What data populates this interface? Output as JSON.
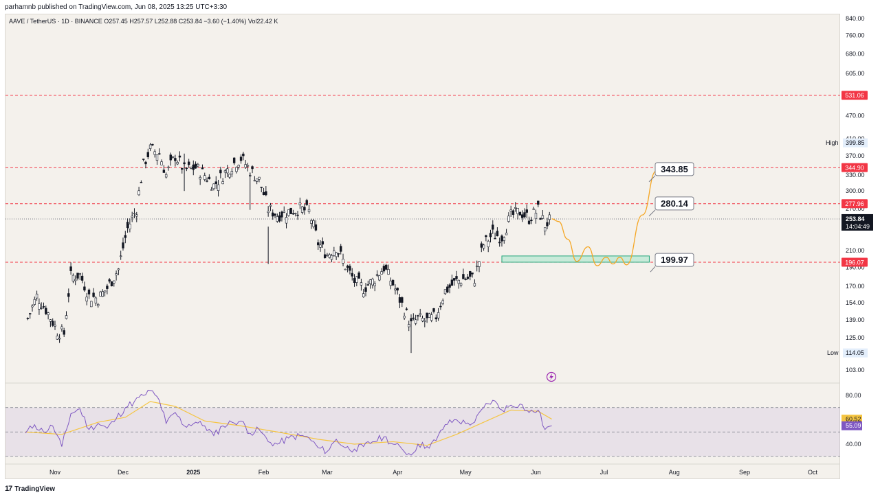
{
  "publish_line": "parhamnb published on TradingView.com, Jun 08, 2025 13:25 UTC+3:30",
  "symbol_line": "AAVE / TetherUS · 1D · BINANCE  O257.45  H257.57  L252.88  C253.84  −3.60 (−1.40%)  Vol22.42 K",
  "footer": {
    "logo": "17",
    "brand": "TradingView"
  },
  "colors": {
    "background": "#f4f1ec",
    "candle": "#131722",
    "support_line": "#f23645",
    "projection": "#f5a623",
    "rsi_line": "#7e57c2",
    "rsi_ma": "#f5c542",
    "zone_fill": "#c8ead9",
    "zone_border": "#21a67a"
  },
  "chart_data": [
    {
      "type": "candlestick",
      "title": "AAVE / TetherUS",
      "y_scale": "log",
      "ylim": [
        95,
        840
      ],
      "y_ticks": [
        840.0,
        760.0,
        680.0,
        605.0,
        470.0,
        410.0,
        370.0,
        330.0,
        300.0,
        270.0,
        210.0,
        190.0,
        170.0,
        154.0,
        139.0,
        125.0,
        103.0
      ],
      "x_labels": [
        "Nov",
        "Dec",
        "2025",
        "Feb",
        "Mar",
        "Apr",
        "May",
        "Jun",
        "Jul",
        "Aug",
        "Sep",
        "Oct"
      ],
      "close_series": [
        {
          "date": "2024-10-20",
          "close": 140
        },
        {
          "date": "2024-10-24",
          "close": 160
        },
        {
          "date": "2024-10-28",
          "close": 148
        },
        {
          "date": "2024-11-02",
          "close": 130
        },
        {
          "date": "2024-11-05",
          "close": 128
        },
        {
          "date": "2024-11-08",
          "close": 180
        },
        {
          "date": "2024-11-12",
          "close": 182
        },
        {
          "date": "2024-11-16",
          "close": 160
        },
        {
          "date": "2024-11-20",
          "close": 158
        },
        {
          "date": "2024-11-24",
          "close": 168
        },
        {
          "date": "2024-11-29",
          "close": 188
        },
        {
          "date": "2024-12-03",
          "close": 240
        },
        {
          "date": "2024-12-07",
          "close": 270
        },
        {
          "date": "2024-12-10",
          "close": 350
        },
        {
          "date": "2024-12-13",
          "close": 385
        },
        {
          "date": "2024-12-17",
          "close": 375
        },
        {
          "date": "2024-12-20",
          "close": 330
        },
        {
          "date": "2024-12-24",
          "close": 370
        },
        {
          "date": "2024-12-28",
          "close": 340
        },
        {
          "date": "2025-01-02",
          "close": 345
        },
        {
          "date": "2025-01-06",
          "close": 330
        },
        {
          "date": "2025-01-10",
          "close": 310
        },
        {
          "date": "2025-01-14",
          "close": 330
        },
        {
          "date": "2025-01-18",
          "close": 350
        },
        {
          "date": "2025-01-22",
          "close": 365
        },
        {
          "date": "2025-01-26",
          "close": 340
        },
        {
          "date": "2025-01-30",
          "close": 320
        },
        {
          "date": "2025-02-03",
          "close": 270
        },
        {
          "date": "2025-02-07",
          "close": 260
        },
        {
          "date": "2025-02-12",
          "close": 265
        },
        {
          "date": "2025-02-17",
          "close": 270
        },
        {
          "date": "2025-02-21",
          "close": 265
        },
        {
          "date": "2025-02-25",
          "close": 220
        },
        {
          "date": "2025-03-01",
          "close": 205
        },
        {
          "date": "2025-03-05",
          "close": 215
        },
        {
          "date": "2025-03-09",
          "close": 192
        },
        {
          "date": "2025-03-13",
          "close": 175
        },
        {
          "date": "2025-03-17",
          "close": 168
        },
        {
          "date": "2025-03-21",
          "close": 175
        },
        {
          "date": "2025-03-26",
          "close": 190
        },
        {
          "date": "2025-03-30",
          "close": 172
        },
        {
          "date": "2025-04-03",
          "close": 152
        },
        {
          "date": "2025-04-07",
          "close": 135
        },
        {
          "date": "2025-04-10",
          "close": 140
        },
        {
          "date": "2025-04-14",
          "close": 138
        },
        {
          "date": "2025-04-18",
          "close": 142
        },
        {
          "date": "2025-04-22",
          "close": 165
        },
        {
          "date": "2025-04-27",
          "close": 175
        },
        {
          "date": "2025-05-01",
          "close": 178
        },
        {
          "date": "2025-05-05",
          "close": 178
        },
        {
          "date": "2025-05-09",
          "close": 218
        },
        {
          "date": "2025-05-13",
          "close": 232
        },
        {
          "date": "2025-05-17",
          "close": 228
        },
        {
          "date": "2025-05-21",
          "close": 258
        },
        {
          "date": "2025-05-25",
          "close": 265
        },
        {
          "date": "2025-05-29",
          "close": 255
        },
        {
          "date": "2025-06-02",
          "close": 268
        },
        {
          "date": "2025-06-05",
          "close": 245
        },
        {
          "date": "2025-06-08",
          "close": 253.84
        }
      ],
      "horizontal_levels": [
        {
          "value": 531.06,
          "label": "531.06",
          "color": "#f23645"
        },
        {
          "value": 344.9,
          "label": "344.90",
          "color": "#f23645"
        },
        {
          "value": 277.96,
          "label": "277.96",
          "color": "#f23645"
        },
        {
          "value": 196.07,
          "label": "196.07",
          "color": "#f23645"
        }
      ],
      "last_price": {
        "value": 253.84,
        "label": "253.84",
        "countdown": "14:04:49"
      },
      "high_marker": {
        "label": "High",
        "value": 399.85,
        "text": "399.85"
      },
      "low_marker": {
        "label": "Low",
        "value": 114.05,
        "text": "114.05"
      },
      "annotations": [
        {
          "text": "343.85",
          "value": 343.85
        },
        {
          "text": "280.14",
          "value": 280.14
        },
        {
          "text": "199.97",
          "value": 199.97
        }
      ],
      "support_zone": {
        "from": 196.07,
        "to": 203.5,
        "start_date": "2025-05-17",
        "end_date": "2025-07-21"
      },
      "projection_path": [
        {
          "date": "2025-06-08",
          "price": 254
        },
        {
          "date": "2025-06-11",
          "price": 250
        },
        {
          "date": "2025-06-15",
          "price": 225
        },
        {
          "date": "2025-06-19",
          "price": 197
        },
        {
          "date": "2025-06-24",
          "price": 215
        },
        {
          "date": "2025-06-28",
          "price": 192
        },
        {
          "date": "2025-07-02",
          "price": 202
        },
        {
          "date": "2025-07-05",
          "price": 194
        },
        {
          "date": "2025-07-08",
          "price": 202
        },
        {
          "date": "2025-07-11",
          "price": 193
        },
        {
          "date": "2025-07-18",
          "price": 260
        },
        {
          "date": "2025-07-24",
          "price": 338
        }
      ]
    },
    {
      "type": "line",
      "title": "RSI",
      "ylim": [
        25,
        90
      ],
      "y_ticks": [
        80.0,
        40.0
      ],
      "band": [
        30,
        70
      ],
      "midline": 50,
      "last_values": {
        "rsi_ma": 60.52,
        "rsi": 55.09
      },
      "series": [
        {
          "values": [
            {
              "date": "2024-10-19",
              "value": 49
            },
            {
              "date": "2024-10-23",
              "value": 56
            },
            {
              "date": "2024-10-27",
              "value": 50
            },
            {
              "date": "2024-10-31",
              "value": 55
            },
            {
              "date": "2024-11-04",
              "value": 38
            },
            {
              "date": "2024-11-08",
              "value": 65
            },
            {
              "date": "2024-11-12",
              "value": 69
            },
            {
              "date": "2024-11-16",
              "value": 52
            },
            {
              "date": "2024-11-20",
              "value": 57
            },
            {
              "date": "2024-11-24",
              "value": 53
            },
            {
              "date": "2024-11-28",
              "value": 61
            },
            {
              "date": "2024-12-02",
              "value": 70
            },
            {
              "date": "2024-12-06",
              "value": 75
            },
            {
              "date": "2024-12-10",
              "value": 80
            },
            {
              "date": "2024-12-13",
              "value": 84
            },
            {
              "date": "2024-12-17",
              "value": 76
            },
            {
              "date": "2024-12-20",
              "value": 57
            },
            {
              "date": "2024-12-24",
              "value": 66
            },
            {
              "date": "2024-12-28",
              "value": 55
            },
            {
              "date": "2025-01-02",
              "value": 58
            },
            {
              "date": "2025-01-06",
              "value": 55
            },
            {
              "date": "2025-01-10",
              "value": 47
            },
            {
              "date": "2025-01-14",
              "value": 55
            },
            {
              "date": "2025-01-18",
              "value": 58
            },
            {
              "date": "2025-01-22",
              "value": 59
            },
            {
              "date": "2025-01-26",
              "value": 49
            },
            {
              "date": "2025-01-30",
              "value": 52
            },
            {
              "date": "2025-02-03",
              "value": 42
            },
            {
              "date": "2025-02-07",
              "value": 40
            },
            {
              "date": "2025-02-12",
              "value": 45
            },
            {
              "date": "2025-02-17",
              "value": 47
            },
            {
              "date": "2025-02-21",
              "value": 45
            },
            {
              "date": "2025-02-25",
              "value": 37
            },
            {
              "date": "2025-03-01",
              "value": 34
            },
            {
              "date": "2025-03-05",
              "value": 44
            },
            {
              "date": "2025-03-09",
              "value": 37
            },
            {
              "date": "2025-03-13",
              "value": 36
            },
            {
              "date": "2025-03-17",
              "value": 38
            },
            {
              "date": "2025-03-21",
              "value": 42
            },
            {
              "date": "2025-03-26",
              "value": 46
            },
            {
              "date": "2025-03-30",
              "value": 40
            },
            {
              "date": "2025-04-03",
              "value": 36
            },
            {
              "date": "2025-04-07",
              "value": 31
            },
            {
              "date": "2025-04-10",
              "value": 40
            },
            {
              "date": "2025-04-14",
              "value": 38
            },
            {
              "date": "2025-04-18",
              "value": 43
            },
            {
              "date": "2025-04-22",
              "value": 56
            },
            {
              "date": "2025-04-27",
              "value": 60
            },
            {
              "date": "2025-05-01",
              "value": 57
            },
            {
              "date": "2025-05-05",
              "value": 58
            },
            {
              "date": "2025-05-09",
              "value": 70
            },
            {
              "date": "2025-05-13",
              "value": 76
            },
            {
              "date": "2025-05-17",
              "value": 68
            },
            {
              "date": "2025-05-21",
              "value": 72
            },
            {
              "date": "2025-05-25",
              "value": 73
            },
            {
              "date": "2025-05-29",
              "value": 66
            },
            {
              "date": "2025-06-02",
              "value": 68
            },
            {
              "date": "2025-06-05",
              "value": 52
            },
            {
              "date": "2025-06-08",
              "value": 55.09
            }
          ]
        },
        {
          "values": [
            {
              "date": "2024-10-19",
              "value": 50
            },
            {
              "date": "2024-11-04",
              "value": 48
            },
            {
              "date": "2024-11-20",
              "value": 58
            },
            {
              "date": "2024-12-02",
              "value": 62
            },
            {
              "date": "2024-12-13",
              "value": 75
            },
            {
              "date": "2024-12-24",
              "value": 71
            },
            {
              "date": "2025-01-06",
              "value": 59
            },
            {
              "date": "2025-01-22",
              "value": 55
            },
            {
              "date": "2025-02-07",
              "value": 50
            },
            {
              "date": "2025-02-25",
              "value": 44
            },
            {
              "date": "2025-03-13",
              "value": 40
            },
            {
              "date": "2025-03-30",
              "value": 42
            },
            {
              "date": "2025-04-14",
              "value": 39
            },
            {
              "date": "2025-04-27",
              "value": 48
            },
            {
              "date": "2025-05-09",
              "value": 58
            },
            {
              "date": "2025-05-21",
              "value": 68
            },
            {
              "date": "2025-06-02",
              "value": 67
            },
            {
              "date": "2025-06-08",
              "value": 60.52
            }
          ]
        }
      ]
    }
  ]
}
